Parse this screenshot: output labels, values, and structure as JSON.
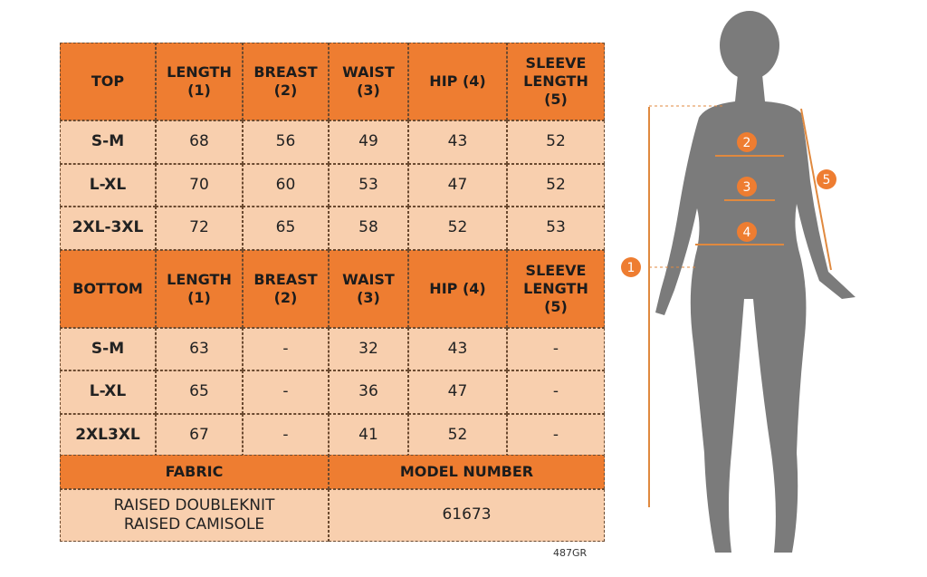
{
  "table": {
    "sections": [
      {
        "header": [
          "TOP",
          "LENGTH\n(1)",
          "BREAST\n(2)",
          "WAIST\n(3)",
          "HIP (4)",
          "SLEEVE\nLENGTH\n(5)"
        ],
        "rows": [
          [
            "S-M",
            68,
            56,
            49,
            43,
            52
          ],
          [
            "L-XL",
            70,
            60,
            53,
            47,
            52
          ],
          [
            "2XL-3XL",
            72,
            65,
            58,
            52,
            53
          ]
        ]
      },
      {
        "header": [
          "BOTTOM",
          "LENGTH\n(1)",
          "BREAST\n(2)",
          "WAIST\n(3)",
          "HIP (4)",
          "SLEEVE\nLENGTH\n(5)"
        ],
        "rows": [
          [
            "S-M",
            63,
            "-",
            32,
            43,
            "-"
          ],
          [
            "L-XL",
            65,
            "-",
            36,
            47,
            "-"
          ],
          [
            "2XL3XL",
            67,
            "-",
            41,
            52,
            "-"
          ]
        ]
      }
    ],
    "footer": {
      "header": [
        "FABRIC",
        "MODEL NUMBER"
      ],
      "values": [
        "RAISED DOUBLEKNIT\nRAISED CAMISOLE",
        61673
      ]
    }
  },
  "figure": {
    "markers": [
      "1",
      "2",
      "3",
      "4",
      "5"
    ]
  },
  "caption": "487GR"
}
